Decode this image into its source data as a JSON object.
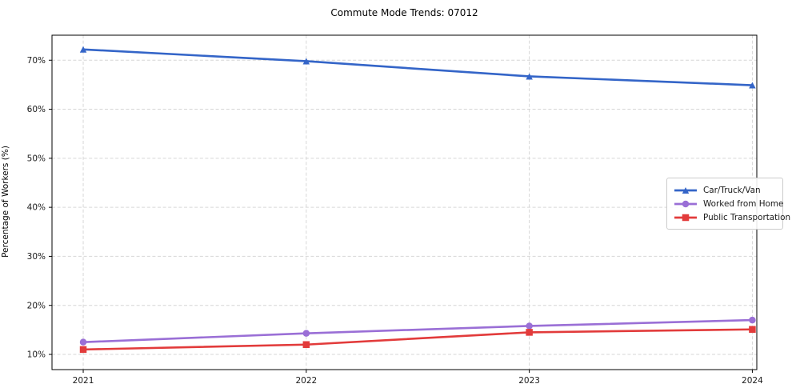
{
  "title": "Commute Mode Trends: 07012",
  "chart_data": {
    "type": "line",
    "title": "Commute Mode Trends: 07012",
    "xlabel": "",
    "ylabel": "Percentage of Workers (%)",
    "x": [
      2021,
      2022,
      2023,
      2024
    ],
    "x_tick_labels": [
      "2021",
      "2022",
      "2023",
      "2024"
    ],
    "series": [
      {
        "name": "Car/Truck/Van",
        "values": [
          72.2,
          69.8,
          66.7,
          64.9
        ],
        "color": "#3465c8",
        "marker": "triangle"
      },
      {
        "name": "Worked from Home",
        "values": [
          12.5,
          14.3,
          15.8,
          17.0
        ],
        "color": "#9a6fd6",
        "marker": "circle"
      },
      {
        "name": "Public Transportation",
        "values": [
          11.0,
          12.0,
          14.5,
          15.1
        ],
        "color": "#e23b3b",
        "marker": "square"
      }
    ],
    "yticks": [
      10,
      20,
      30,
      40,
      50,
      60,
      70
    ],
    "ytick_labels": [
      "10%",
      "20%",
      "30%",
      "40%",
      "50%",
      "60%",
      "70%"
    ],
    "ylim": [
      6.9,
      75.1
    ],
    "xlim": [
      2020.86,
      2024.02
    ],
    "grid": true,
    "legend_position": "center-right"
  }
}
